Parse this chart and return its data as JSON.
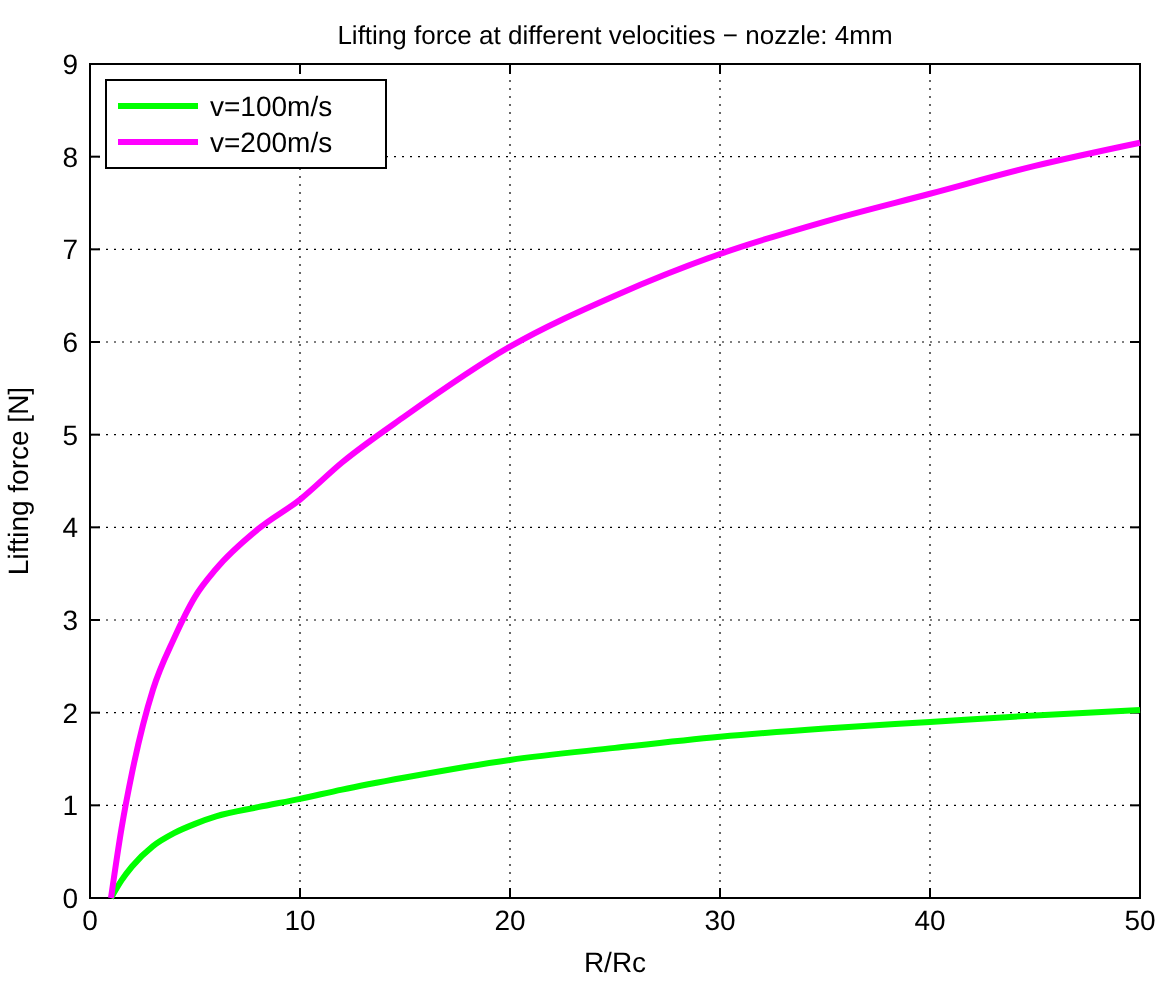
{
  "chart_data": {
    "type": "line",
    "title": "Lifting force at different velocities − nozzle: 4mm",
    "xlabel": "R/Rc",
    "ylabel": "Lifting force [N]",
    "x": [
      1,
      1.5,
      2,
      3,
      4,
      5,
      6,
      8,
      10,
      12,
      15,
      20,
      25,
      30,
      35,
      40,
      45,
      50
    ],
    "series": [
      {
        "name": "v=100m/s",
        "color": "#00ff00",
        "values": [
          0,
          0.19,
          0.34,
          0.56,
          0.7,
          0.8,
          0.88,
          0.98,
          1.07,
          1.17,
          1.3,
          1.49,
          1.62,
          1.74,
          1.83,
          1.9,
          1.97,
          2.03
        ]
      },
      {
        "name": "v=200m/s",
        "color": "#ff00ff",
        "values": [
          0,
          0.75,
          1.35,
          2.25,
          2.8,
          3.25,
          3.55,
          3.98,
          4.3,
          4.7,
          5.2,
          5.95,
          6.5,
          6.95,
          7.3,
          7.6,
          7.9,
          8.15
        ]
      }
    ],
    "xlim": [
      0,
      50
    ],
    "xticks": [
      0,
      10,
      20,
      30,
      40,
      50
    ],
    "ylim": [
      0,
      9
    ],
    "yticks": [
      0,
      1,
      2,
      3,
      4,
      5,
      6,
      7,
      8,
      9
    ],
    "grid": true,
    "legend": "top left",
    "marker": "none",
    "line_style": "solid"
  }
}
